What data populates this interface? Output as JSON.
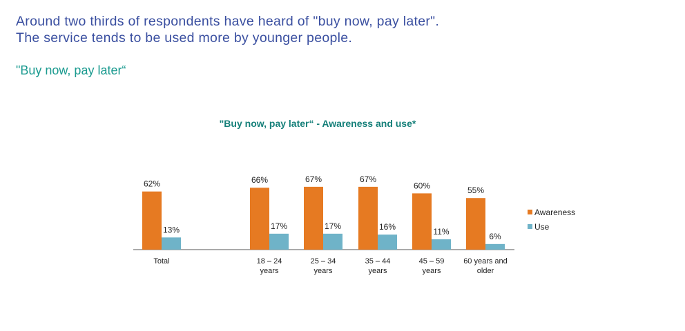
{
  "header": {
    "line1": "Around two thirds of respondents have heard of \"buy now, pay later\".",
    "line2": "The service tends to be used more by younger people.",
    "subtitle": "\"Buy now, pay later“"
  },
  "colors": {
    "awareness": "#e67a22",
    "use": "#6fb3c8",
    "axis": "#555555",
    "headline": "#3a4fa0",
    "accent": "#1a9a8f"
  },
  "chart_data": {
    "type": "bar",
    "title": "\"Buy now, pay later“ - Awareness and use*",
    "xlabel": "",
    "ylabel": "",
    "ylim": [
      0,
      100
    ],
    "grid": false,
    "legend_position": "right",
    "categories": [
      [
        "Total"
      ],
      [
        "18 – 24",
        "years"
      ],
      [
        "25 – 34",
        "years"
      ],
      [
        "35 – 44",
        "years"
      ],
      [
        "45 – 59",
        "years"
      ],
      [
        "60 years and",
        "older"
      ]
    ],
    "series": [
      {
        "name": "Awareness",
        "values": [
          62,
          66,
          67,
          67,
          60,
          55
        ],
        "labels": [
          "62%",
          "66%",
          "67%",
          "67%",
          "60%",
          "55%"
        ]
      },
      {
        "name": "Use",
        "values": [
          13,
          17,
          17,
          16,
          11,
          6
        ],
        "labels": [
          "13%",
          "17%",
          "17%",
          "16%",
          "11%",
          "6%"
        ]
      }
    ]
  }
}
